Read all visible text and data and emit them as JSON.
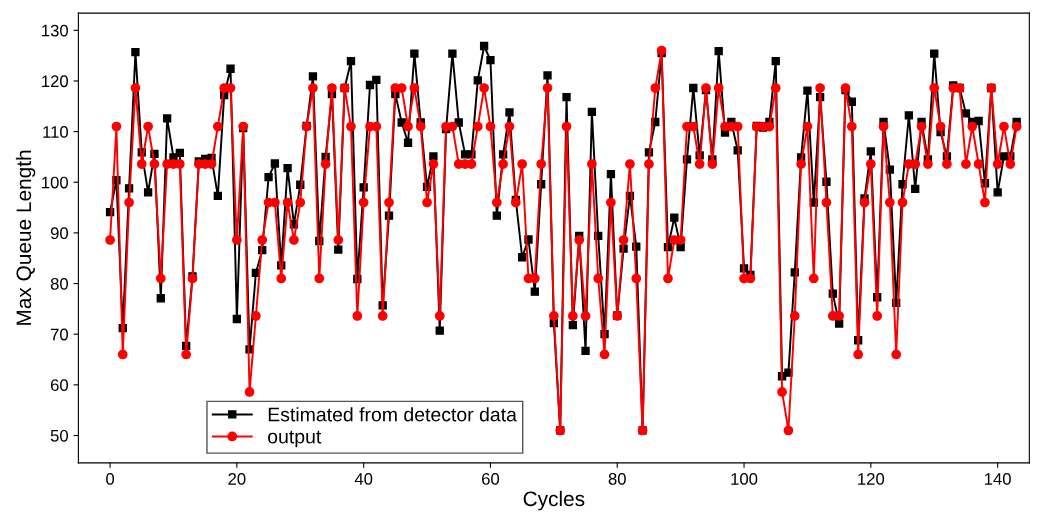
{
  "chart_data": {
    "type": "line",
    "xlabel": "Cycles",
    "ylabel": "Max Queue Length",
    "x": [
      0,
      1,
      2,
      3,
      4,
      5,
      6,
      7,
      8,
      9,
      10,
      11,
      12,
      13,
      14,
      15,
      16,
      17,
      18,
      19,
      20,
      21,
      22,
      23,
      24,
      25,
      26,
      27,
      28,
      29,
      30,
      31,
      32,
      33,
      34,
      35,
      36,
      37,
      38,
      39,
      40,
      41,
      42,
      43,
      44,
      45,
      46,
      47,
      48,
      49,
      50,
      51,
      52,
      53,
      54,
      55,
      56,
      57,
      58,
      59,
      60,
      61,
      62,
      63,
      64,
      65,
      66,
      67,
      68,
      69,
      70,
      71,
      72,
      73,
      74,
      75,
      76,
      77,
      78,
      79,
      80,
      81,
      82,
      83,
      84,
      85,
      86,
      87,
      88,
      89,
      90,
      91,
      92,
      93,
      94,
      95,
      96,
      97,
      98,
      99,
      100,
      101,
      102,
      103,
      104,
      105,
      106,
      107,
      108,
      109,
      110,
      111,
      112,
      113,
      114,
      115,
      116,
      117,
      118,
      119,
      120,
      121,
      122,
      123,
      124,
      125,
      126,
      127,
      128,
      129,
      130,
      131,
      132,
      133,
      134,
      135,
      136,
      137,
      138,
      139,
      140,
      141,
      142,
      143
    ],
    "series": [
      {
        "name": "Estimated from detector data",
        "color": "#000000",
        "marker": "square",
        "values": [
          94.1,
          100.4,
          71.2,
          98.8,
          125.7,
          105.9,
          98,
          105.6,
          77.1,
          112.6,
          104.9,
          105.8,
          67.7,
          81.4,
          104.1,
          104.6,
          104.8,
          97.3,
          117.2,
          122.4,
          73,
          110.7,
          67,
          82.1,
          86.6,
          101,
          103.7,
          83.6,
          102.8,
          91.7,
          99.5,
          111.1,
          120.9,
          88.4,
          105,
          117.4,
          86.7,
          118.6,
          123.9,
          80.9,
          99,
          119.2,
          120.2,
          75.7,
          93.4,
          117.4,
          111.8,
          107.8,
          125.4,
          111.8,
          99.1,
          105.1,
          70.7,
          110.5,
          125.4,
          111.8,
          105.5,
          105.5,
          120.1,
          126.9,
          124.1,
          93.4,
          105.5,
          113.8,
          96.5,
          85.2,
          88.7,
          78.4,
          99.6,
          121.1,
          72.2,
          51,
          116.8,
          71.8,
          89.4,
          66.7,
          113.9,
          89.4,
          70,
          101.6,
          73.7,
          86.9,
          97.3,
          87.3,
          51,
          105.9,
          111.9,
          125.5,
          87.2,
          93,
          87.2,
          104.5,
          118.6,
          105.3,
          118.2,
          104.5,
          125.9,
          109.8,
          111.9,
          106.3,
          83,
          81.7,
          111.1,
          110.8,
          111.9,
          123.9,
          61.7,
          62.4,
          82.2,
          104.9,
          118.1,
          96,
          116.8,
          100.1,
          78,
          72.1,
          118.2,
          115.9,
          68.8,
          96.8,
          106.1,
          77.3,
          111.9,
          102.5,
          76.2,
          99.6,
          113.2,
          98.7,
          111.9,
          104.5,
          125.4,
          109.9,
          105.1,
          119.1,
          118.6,
          113.6,
          111.9,
          112.1,
          99.8,
          118.6,
          98,
          105.1,
          105.1,
          111.9
        ]
      },
      {
        "name": "output",
        "color": "#ff0000",
        "marker": "circle",
        "values": [
          88.6,
          111,
          66,
          96,
          118.6,
          103.6,
          111,
          103.6,
          81,
          103.6,
          103.6,
          103.6,
          66,
          81,
          103.6,
          103.6,
          103.6,
          111,
          118.6,
          118.6,
          88.6,
          111,
          58.6,
          73.6,
          88.6,
          96,
          96,
          81,
          96,
          88.6,
          96,
          111,
          118.6,
          81,
          103.6,
          118.6,
          88.6,
          118.6,
          111,
          73.6,
          96,
          111,
          111,
          73.6,
          96,
          118.6,
          118.6,
          111,
          118.6,
          111,
          96,
          103.6,
          73.6,
          111,
          111,
          103.6,
          103.6,
          103.6,
          111,
          118.6,
          111,
          96,
          103.6,
          111,
          96,
          103.6,
          81,
          81,
          103.6,
          118.6,
          73.6,
          51,
          111,
          73.6,
          88.6,
          73.6,
          103.6,
          81,
          66,
          96,
          73.6,
          88.6,
          103.6,
          81,
          51,
          103.6,
          118.6,
          126,
          81,
          88.6,
          88.6,
          111,
          111,
          103.6,
          118.6,
          103.6,
          118.6,
          111,
          111,
          111,
          81,
          81,
          111,
          111,
          111,
          118.6,
          58.6,
          51,
          73.6,
          103.6,
          111,
          81,
          118.6,
          96,
          73.6,
          73.6,
          118.6,
          111,
          66,
          96,
          103.6,
          73.6,
          111,
          96,
          66,
          96,
          103.6,
          103.6,
          111,
          103.6,
          118.6,
          111,
          103.6,
          118.6,
          118.6,
          103.6,
          111,
          103.6,
          96,
          118.6,
          103.6,
          111,
          103.6,
          111
        ]
      }
    ],
    "xlim": [
      -5,
      145
    ],
    "xticks": [
      0,
      20,
      40,
      60,
      80,
      100,
      120,
      140
    ],
    "ylim": [
      44.6,
      133.4
    ],
    "yticks": [
      50,
      60,
      70,
      80,
      90,
      100,
      110,
      120,
      130
    ],
    "legend": "bottom left",
    "grid": false,
    "line_style": "solid"
  }
}
